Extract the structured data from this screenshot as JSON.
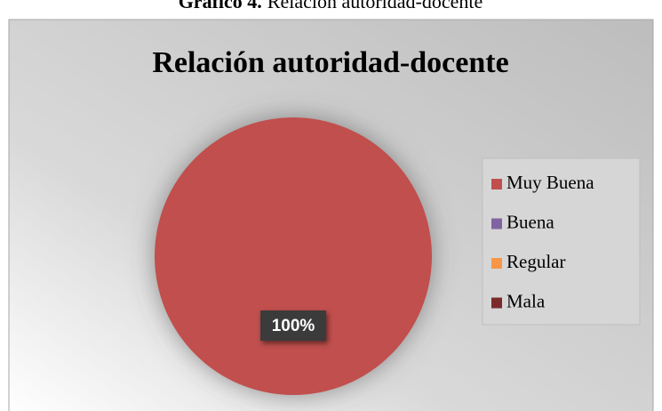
{
  "caption": {
    "label": "Gráfico 4.",
    "text": "Relación autoridad-docente"
  },
  "chart_data": {
    "type": "pie",
    "title": "Relación autoridad-docente",
    "categories": [
      "Muy Buena",
      "Buena",
      "Regular",
      "Mala"
    ],
    "values": [
      100,
      0,
      0,
      0
    ],
    "value_labels": [
      "100%",
      null,
      null,
      null
    ],
    "colors": [
      "#c0504d",
      "#8064a2",
      "#f79646",
      "#7b2c2a"
    ],
    "legend": "right"
  }
}
